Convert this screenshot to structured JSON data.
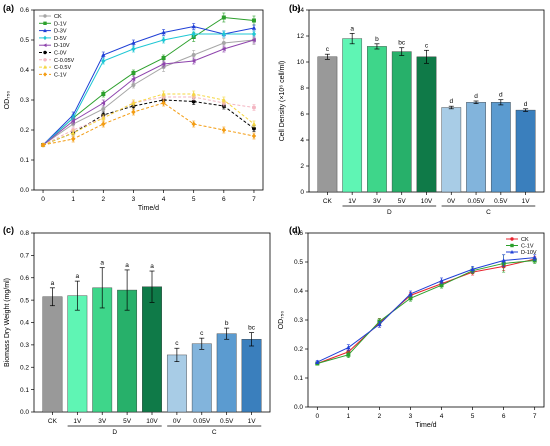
{
  "chart_data": [
    {
      "panel": "(a)",
      "type": "line",
      "xlabel": "Time/d",
      "ylabel": "OD₇₅₀",
      "x": [
        0,
        1,
        2,
        3,
        4,
        5,
        6,
        7
      ],
      "xlim": [
        -0.3,
        7.3
      ],
      "ylim": [
        0,
        0.6
      ],
      "yticks": [
        0.0,
        0.1,
        0.2,
        0.3,
        0.4,
        0.5,
        0.6
      ],
      "yticklabels": [
        "0.0",
        "0.1",
        "0.2",
        "0.3",
        "0.4",
        "0.5",
        "0.6"
      ],
      "xticks": [
        0,
        1,
        2,
        3,
        4,
        5,
        6,
        7
      ],
      "xticklabels": [
        "0",
        "1",
        "2",
        "3",
        "4",
        "5",
        "6",
        "7"
      ],
      "grid": false,
      "legend_position": "top-left",
      "series": [
        {
          "name": "CK",
          "color": "#a6a6a6",
          "marker": "circle",
          "dashed": false,
          "values": [
            0.15,
            0.22,
            0.27,
            0.35,
            0.41,
            0.45,
            0.49,
            0.5
          ],
          "errors": [
            0.005,
            0.01,
            0.01,
            0.01,
            0.015,
            0.015,
            0.015,
            0.015
          ]
        },
        {
          "name": "D-1V",
          "color": "#2ca02c",
          "marker": "square",
          "dashed": false,
          "values": [
            0.15,
            0.24,
            0.32,
            0.39,
            0.44,
            0.51,
            0.575,
            0.565
          ],
          "errors": [
            0.005,
            0.01,
            0.01,
            0.01,
            0.01,
            0.015,
            0.015,
            0.015
          ]
        },
        {
          "name": "D-3V",
          "color": "#1f3fd6",
          "marker": "triangle",
          "dashed": false,
          "values": [
            0.15,
            0.25,
            0.45,
            0.49,
            0.525,
            0.545,
            0.52,
            0.54
          ],
          "errors": [
            0.005,
            0.01,
            0.01,
            0.01,
            0.01,
            0.01,
            0.01,
            0.01
          ]
        },
        {
          "name": "D-5V",
          "color": "#1fc7d4",
          "marker": "diamond",
          "dashed": false,
          "values": [
            0.15,
            0.24,
            0.43,
            0.47,
            0.5,
            0.52,
            0.52,
            0.52
          ],
          "errors": [
            0.005,
            0.01,
            0.01,
            0.01,
            0.01,
            0.01,
            0.01,
            0.01
          ]
        },
        {
          "name": "D-10V",
          "color": "#8e44ad",
          "marker": "triangle-left",
          "dashed": false,
          "values": [
            0.15,
            0.23,
            0.29,
            0.37,
            0.42,
            0.43,
            0.47,
            0.5
          ],
          "errors": [
            0.005,
            0.01,
            0.01,
            0.01,
            0.01,
            0.01,
            0.01,
            0.01
          ]
        },
        {
          "name": "C-0V",
          "color": "#000000",
          "marker": "circle",
          "dashed": true,
          "values": [
            0.15,
            0.19,
            0.25,
            0.28,
            0.3,
            0.295,
            0.28,
            0.205
          ],
          "errors": [
            0.005,
            0.01,
            0.01,
            0.01,
            0.01,
            0.01,
            0.01,
            0.01
          ]
        },
        {
          "name": "C-0.05V",
          "color": "#f4b6c2",
          "marker": "circle",
          "dashed": true,
          "values": [
            0.15,
            0.2,
            0.24,
            0.29,
            0.31,
            0.31,
            0.29,
            0.275
          ],
          "errors": [
            0.005,
            0.01,
            0.01,
            0.01,
            0.01,
            0.01,
            0.01,
            0.01
          ]
        },
        {
          "name": "C-0.5V",
          "color": "#f5d742",
          "marker": "triangle",
          "dashed": true,
          "values": [
            0.15,
            0.19,
            0.24,
            0.29,
            0.32,
            0.32,
            0.3,
            0.22
          ],
          "errors": [
            0.005,
            0.01,
            0.01,
            0.01,
            0.01,
            0.01,
            0.01,
            0.01
          ]
        },
        {
          "name": "C-1V",
          "color": "#f39c12",
          "marker": "diamond",
          "dashed": true,
          "values": [
            0.15,
            0.17,
            0.22,
            0.26,
            0.29,
            0.22,
            0.2,
            0.18
          ],
          "errors": [
            0.005,
            0.01,
            0.01,
            0.01,
            0.01,
            0.01,
            0.01,
            0.01
          ]
        }
      ]
    },
    {
      "panel": "(b)",
      "type": "bar",
      "ylabel": "Cell Density (×10⁶ cell/ml)",
      "ylim": [
        0,
        14
      ],
      "yticks": [
        0,
        2,
        4,
        6,
        8,
        10,
        12,
        14
      ],
      "yticklabels": [
        "0",
        "2",
        "4",
        "6",
        "8",
        "10",
        "12",
        "14"
      ],
      "grid": false,
      "categories": [
        "CK",
        "1V",
        "3V",
        "5V",
        "10V",
        "0V",
        "0.05V",
        "0.5V",
        "1V"
      ],
      "values": [
        10.4,
        11.8,
        11.2,
        10.8,
        10.4,
        6.5,
        6.9,
        6.9,
        6.3
      ],
      "errors": [
        0.2,
        0.4,
        0.2,
        0.3,
        0.5,
        0.1,
        0.1,
        0.2,
        0.1
      ],
      "significance": [
        "c",
        "a",
        "b",
        "bc",
        "c",
        "d",
        "d",
        "d",
        "d"
      ],
      "colors": [
        "#999999",
        "#5ff5b4",
        "#3ed68a",
        "#27b06a",
        "#0f7a48",
        "#a8cce6",
        "#82b4dc",
        "#5b9bd0",
        "#3a7fbd"
      ],
      "groups": [
        {
          "label": "D",
          "from": 1,
          "to": 4
        },
        {
          "label": "C",
          "from": 5,
          "to": 8
        }
      ]
    },
    {
      "panel": "(c)",
      "type": "bar",
      "ylabel": "Biomass Dry Weight (mg/ml)",
      "ylim": [
        0,
        0.8
      ],
      "yticks": [
        0.0,
        0.1,
        0.2,
        0.3,
        0.4,
        0.5,
        0.6,
        0.7,
        0.8
      ],
      "yticklabels": [
        "0.0",
        "0.1",
        "0.2",
        "0.3",
        "0.4",
        "0.5",
        "0.6",
        "0.7",
        "0.8"
      ],
      "grid": false,
      "categories": [
        "CK",
        "1V",
        "3V",
        "5V",
        "10V",
        "0V",
        "0.05V",
        "0.5V",
        "1V"
      ],
      "values": [
        0.515,
        0.52,
        0.555,
        0.545,
        0.56,
        0.255,
        0.305,
        0.35,
        0.325
      ],
      "errors": [
        0.04,
        0.065,
        0.09,
        0.09,
        0.07,
        0.03,
        0.025,
        0.025,
        0.03
      ],
      "significance": [
        "a",
        "a",
        "a",
        "a",
        "a",
        "c",
        "c",
        "b",
        "bc"
      ],
      "colors": [
        "#999999",
        "#5ff5b4",
        "#3ed68a",
        "#27b06a",
        "#0f7a48",
        "#a8cce6",
        "#82b4dc",
        "#5b9bd0",
        "#3a7fbd"
      ],
      "groups": [
        {
          "label": "D",
          "from": 1,
          "to": 4
        },
        {
          "label": "C",
          "from": 5,
          "to": 8
        }
      ]
    },
    {
      "panel": "(d)",
      "type": "line",
      "xlabel": "Time/d",
      "ylabel": "OD₇₅₀",
      "x": [
        0,
        1,
        2,
        3,
        4,
        5,
        6,
        7
      ],
      "xlim": [
        -0.3,
        7.3
      ],
      "ylim": [
        0,
        0.6
      ],
      "yticks": [
        0.0,
        0.1,
        0.2,
        0.3,
        0.4,
        0.5,
        0.6
      ],
      "yticklabels": [
        "0.0",
        "0.1",
        "0.2",
        "0.3",
        "0.4",
        "0.5",
        "0.6"
      ],
      "xticks": [
        0,
        1,
        2,
        3,
        4,
        5,
        6,
        7
      ],
      "xticklabels": [
        "0",
        "1",
        "2",
        "3",
        "4",
        "5",
        "6",
        "7"
      ],
      "grid": false,
      "legend_position": "top-right",
      "series": [
        {
          "name": "CK",
          "color": "#e8222e",
          "marker": "circle",
          "dashed": false,
          "values": [
            0.15,
            0.19,
            0.29,
            0.385,
            0.425,
            0.465,
            0.485,
            0.51
          ],
          "errors": [
            0.005,
            0.01,
            0.015,
            0.01,
            0.01,
            0.01,
            0.015,
            0.01
          ]
        },
        {
          "name": "C-1V",
          "color": "#2ca02c",
          "marker": "square",
          "dashed": false,
          "values": [
            0.15,
            0.18,
            0.295,
            0.375,
            0.42,
            0.47,
            0.495,
            0.505
          ],
          "errors": [
            0.005,
            0.01,
            0.01,
            0.01,
            0.01,
            0.01,
            0.03,
            0.01
          ]
        },
        {
          "name": "D-10V",
          "color": "#1f3fd6",
          "marker": "triangle",
          "dashed": false,
          "values": [
            0.155,
            0.205,
            0.285,
            0.39,
            0.435,
            0.475,
            0.505,
            0.515
          ],
          "errors": [
            0.005,
            0.01,
            0.01,
            0.01,
            0.01,
            0.01,
            0.02,
            0.01
          ]
        }
      ]
    }
  ]
}
